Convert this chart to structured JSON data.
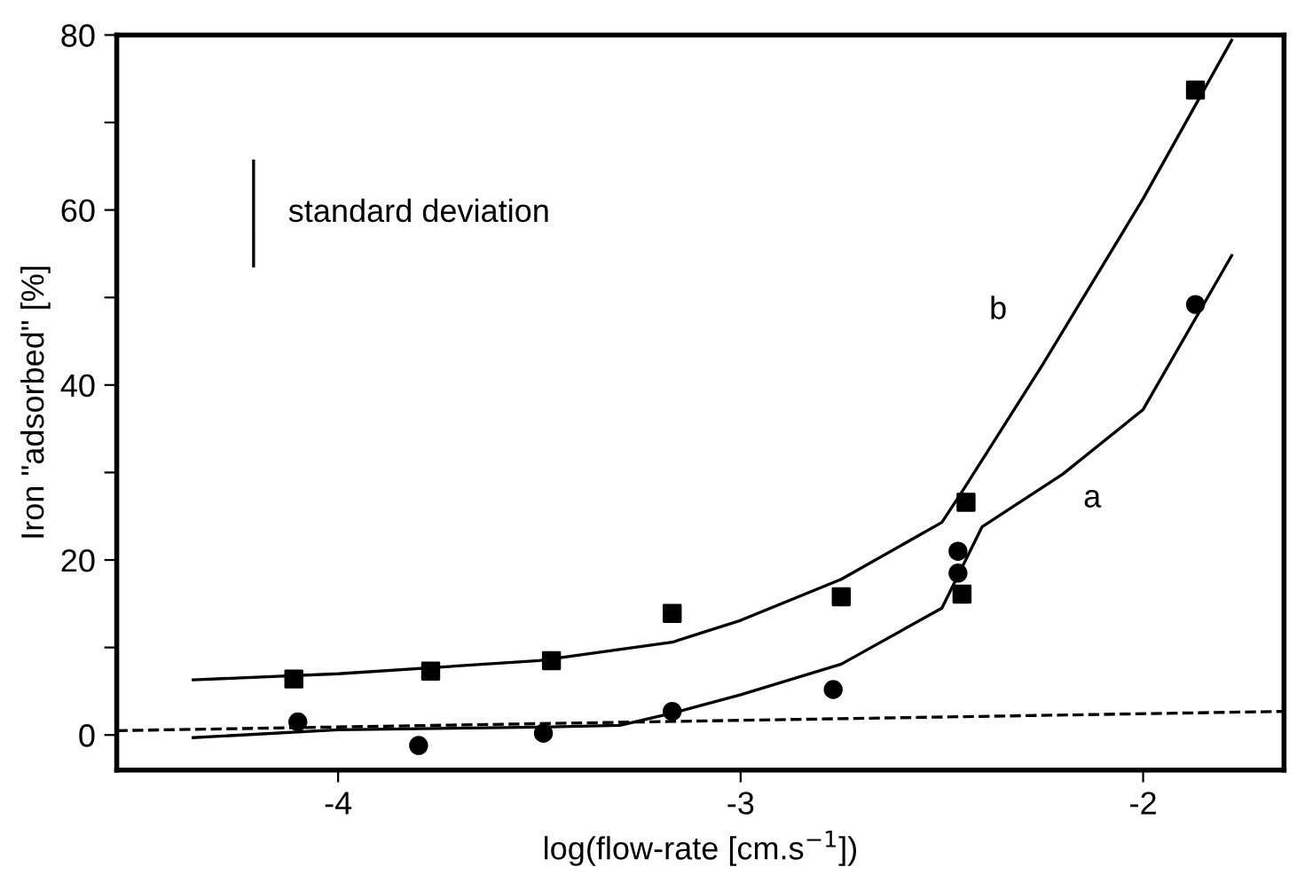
{
  "chart_data": {
    "type": "scatter",
    "xlabel": "log(flow-rate [cm.s$^{−1}$])",
    "ylabel": "Iron \"adsorbed\" [%]",
    "xlim": [
      -4.55,
      -1.65
    ],
    "xticks": [
      -4,
      -3,
      -2
    ],
    "ylim": [
      -4,
      80
    ],
    "yticks": [
      0,
      {
        "value": 10,
        "label": null
      },
      20,
      {
        "value": 30,
        "label": null
      },
      40,
      {
        "value": 50,
        "label": null
      },
      60,
      {
        "value": 70,
        "label": null
      },
      80
    ],
    "grid": false,
    "legend": false,
    "series": [
      {
        "marker": "square",
        "color": "#000000",
        "x": [
          -4.11,
          -3.77,
          -3.47,
          -3.17,
          -2.75,
          -2.44,
          -2.45,
          -1.87
        ],
        "values": [
          6.4,
          7.3,
          8.5,
          13.9,
          15.8,
          26.6,
          16.1,
          73.7
        ]
      },
      {
        "marker": "circle",
        "color": "#000000",
        "x": [
          -4.1,
          -3.8,
          -3.49,
          -3.17,
          -2.77,
          -2.46,
          -2.46,
          -1.87
        ],
        "values": [
          1.5,
          -1.2,
          0.2,
          2.7,
          5.2,
          21.0,
          18.5,
          49.2
        ]
      },
      {
        "type": "line",
        "name": "b",
        "marker": "none",
        "line_style": "solid",
        "color": "#000000",
        "x": [
          -4.36,
          -4.0,
          -3.5,
          -3.17,
          -3.0,
          -2.75,
          -2.5,
          -2.45,
          -2.25,
          -2.0,
          -1.78
        ],
        "values": [
          6.3,
          7.0,
          8.5,
          10.6,
          13.1,
          17.8,
          24.3,
          27.8,
          42.3,
          61.3,
          79.4
        ]
      },
      {
        "type": "line",
        "name": "a",
        "marker": "none",
        "line_style": "solid",
        "color": "#000000",
        "x": [
          -4.36,
          -4.0,
          -3.5,
          -3.3,
          -3.17,
          -3.0,
          -2.75,
          -2.5,
          -2.4,
          -2.2,
          -2.0,
          -1.78
        ],
        "values": [
          -0.3,
          0.6,
          0.9,
          1.1,
          2.5,
          4.6,
          8.1,
          14.5,
          23.8,
          29.8,
          37.2,
          54.8
        ]
      },
      {
        "type": "line",
        "marker": "none",
        "line_style": "dashed",
        "color": "#000000",
        "x": [
          -4.55,
          -1.65
        ],
        "values": [
          0.5,
          2.7
        ]
      },
      {
        "type": "line",
        "name": "standard deviation",
        "marker": "none",
        "line_style": "solid",
        "color": "#000000",
        "x": [
          -4.21,
          -4.21
        ],
        "values": [
          53.6,
          65.6
        ]
      }
    ]
  }
}
